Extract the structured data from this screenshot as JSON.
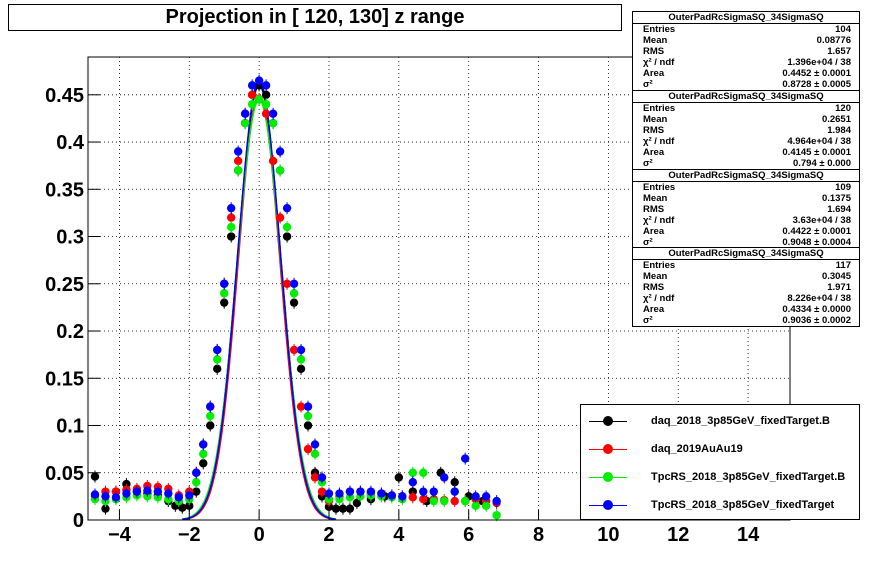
{
  "title": "Projection in [ 120, 130] z range",
  "stat_boxes": [
    {
      "name": "OuterPadRcSigmaSQ_34SigmaSQ",
      "rows": [
        [
          "Entries",
          "104"
        ],
        [
          "Mean",
          "0.08776"
        ],
        [
          "RMS",
          "1.657"
        ],
        [
          "χ² / ndf",
          "1.396e+04 / 38"
        ],
        [
          "Area",
          "0.4452 ± 0.0001"
        ],
        [
          "σ²",
          "0.8728 ± 0.0005"
        ]
      ]
    },
    {
      "name": "OuterPadRcSigmaSQ_34SigmaSQ",
      "rows": [
        [
          "Entries",
          "120"
        ],
        [
          "Mean",
          "0.2651"
        ],
        [
          "RMS",
          "1.984"
        ],
        [
          "χ² / ndf",
          "4.964e+04 / 38"
        ],
        [
          "Area",
          "0.4145 ± 0.0001"
        ],
        [
          "σ²",
          "0.794 ± 0.000"
        ]
      ]
    },
    {
      "name": "OuterPadRcSigmaSQ_34SigmaSQ",
      "rows": [
        [
          "Entries",
          "109"
        ],
        [
          "Mean",
          "0.1375"
        ],
        [
          "RMS",
          "1.694"
        ],
        [
          "χ² / ndf",
          "3.63e+04 / 38"
        ],
        [
          "Area",
          "0.4422 ± 0.0001"
        ],
        [
          "σ²",
          "0.9048 ± 0.0004"
        ]
      ]
    },
    {
      "name": "OuterPadRcSigmaSQ_34SigmaSQ",
      "rows": [
        [
          "Entries",
          "117"
        ],
        [
          "Mean",
          "0.3045"
        ],
        [
          "RMS",
          "1.971"
        ],
        [
          "χ² / ndf",
          "8.226e+04 / 38"
        ],
        [
          "Area",
          "0.4334 ± 0.0000"
        ],
        [
          "σ²",
          "0.9036 ± 0.0002"
        ]
      ]
    }
  ],
  "chart_data": {
    "type": "scatter",
    "title": "Projection in [ 120, 130] z range",
    "xlabel": "",
    "ylabel": "",
    "xlim": [
      -4.9,
      15.2
    ],
    "ylim": [
      0,
      0.49
    ],
    "grid": true,
    "legend_position": "bottom-right",
    "x_ticks": [
      -4,
      -2,
      0,
      2,
      4,
      6,
      8,
      10,
      12,
      14
    ],
    "x_tick_labels": [
      "−4",
      "−2",
      "0",
      "2",
      "4",
      "6",
      "8",
      "10",
      "12",
      "14"
    ],
    "y_ticks": [
      0,
      0.05,
      0.1,
      0.15,
      0.2,
      0.25,
      0.3,
      0.35,
      0.4,
      0.45
    ],
    "y_tick_labels": [
      "0",
      "0.05",
      "0.1",
      "0.15",
      "0.2",
      "0.25",
      "0.3",
      "0.35",
      "0.4",
      "0.45"
    ],
    "series": [
      {
        "name": "daq_2018_3p85GeV_fixedTarget.B",
        "color": "#000000",
        "x": [
          -4.7,
          -4.4,
          -4.1,
          -3.8,
          -3.5,
          -3.2,
          -2.9,
          -2.6,
          -2.4,
          -2.2,
          -2.0,
          -1.8,
          -1.6,
          -1.4,
          -1.2,
          -1.0,
          -0.8,
          -0.6,
          -0.4,
          -0.2,
          0.0,
          0.2,
          0.4,
          0.6,
          0.8,
          1.0,
          1.2,
          1.4,
          1.6,
          1.8,
          2.0,
          2.2,
          2.4,
          2.6,
          2.8,
          3.2,
          3.6,
          4.0,
          4.4,
          4.8,
          5.2,
          5.6,
          6.0,
          6.4
        ],
        "y": [
          0.046,
          0.012,
          0.03,
          0.038,
          0.03,
          0.028,
          0.026,
          0.02,
          0.015,
          0.013,
          0.015,
          0.03,
          0.06,
          0.1,
          0.16,
          0.23,
          0.3,
          0.37,
          0.42,
          0.45,
          0.46,
          0.45,
          0.42,
          0.37,
          0.3,
          0.23,
          0.16,
          0.1,
          0.05,
          0.025,
          0.014,
          0.012,
          0.012,
          0.012,
          0.018,
          0.022,
          0.025,
          0.045,
          0.03,
          0.02,
          0.05,
          0.04,
          0.025,
          0.02
        ]
      },
      {
        "name": "daq_2019AuAu19",
        "color": "#ff0000",
        "x": [
          -4.7,
          -4.4,
          -4.1,
          -3.8,
          -3.5,
          -3.2,
          -2.9,
          -2.6,
          -2.3,
          -2.0,
          -1.8,
          -1.6,
          -1.4,
          -1.2,
          -1.0,
          -0.8,
          -0.6,
          -0.4,
          -0.2,
          0.0,
          0.2,
          0.4,
          0.6,
          0.8,
          1.0,
          1.2,
          1.4,
          1.6,
          1.8,
          2.0,
          2.3,
          2.6,
          2.9,
          3.2,
          3.5,
          3.8,
          4.1,
          4.4,
          4.7,
          5.0,
          5.3,
          5.6,
          5.9,
          6.2,
          6.5,
          6.8
        ],
        "y": [
          0.025,
          0.03,
          0.03,
          0.032,
          0.033,
          0.036,
          0.035,
          0.033,
          0.026,
          0.03,
          0.05,
          0.08,
          0.12,
          0.18,
          0.25,
          0.32,
          0.38,
          0.43,
          0.45,
          0.445,
          0.43,
          0.38,
          0.32,
          0.25,
          0.18,
          0.12,
          0.075,
          0.045,
          0.03,
          0.02,
          0.025,
          0.03,
          0.03,
          0.028,
          0.028,
          0.026,
          0.025,
          0.024,
          0.022,
          0.022,
          0.021,
          0.02,
          0.02,
          0.022,
          0.02,
          0.018
        ]
      },
      {
        "name": "TpcRS_2018_3p85GeV_fixedTarget.B",
        "color": "#00ee00",
        "x": [
          -4.7,
          -4.4,
          -4.1,
          -3.8,
          -3.5,
          -3.2,
          -2.9,
          -2.6,
          -2.3,
          -2.0,
          -1.8,
          -1.6,
          -1.4,
          -1.2,
          -1.0,
          -0.8,
          -0.6,
          -0.4,
          -0.2,
          0.0,
          0.2,
          0.4,
          0.6,
          0.8,
          1.0,
          1.2,
          1.4,
          1.6,
          1.8,
          2.0,
          2.3,
          2.6,
          2.9,
          3.2,
          3.5,
          3.8,
          4.1,
          4.4,
          4.7,
          5.0,
          5.3,
          5.6,
          5.9,
          6.2,
          6.5,
          6.8
        ],
        "y": [
          0.022,
          0.02,
          0.022,
          0.024,
          0.026,
          0.025,
          0.024,
          0.022,
          0.02,
          0.022,
          0.04,
          0.07,
          0.11,
          0.17,
          0.24,
          0.31,
          0.37,
          0.42,
          0.44,
          0.445,
          0.44,
          0.42,
          0.37,
          0.31,
          0.24,
          0.17,
          0.11,
          0.07,
          0.04,
          0.022,
          0.022,
          0.024,
          0.025,
          0.026,
          0.025,
          0.024,
          0.022,
          0.05,
          0.05,
          0.02,
          0.02,
          0.03,
          0.02,
          0.015,
          0.015,
          0.005
        ]
      },
      {
        "name": "TpcRS_2018_3p85GeV_fixedTarget",
        "color": "#0000ff",
        "x": [
          -4.7,
          -4.4,
          -4.1,
          -3.8,
          -3.5,
          -3.2,
          -2.9,
          -2.6,
          -2.3,
          -2.0,
          -1.8,
          -1.6,
          -1.4,
          -1.2,
          -1.0,
          -0.8,
          -0.6,
          -0.4,
          -0.2,
          0.0,
          0.2,
          0.4,
          0.6,
          0.8,
          1.0,
          1.2,
          1.4,
          1.6,
          1.8,
          2.0,
          2.3,
          2.6,
          2.9,
          3.2,
          3.5,
          3.8,
          4.1,
          4.4,
          4.7,
          5.0,
          5.3,
          5.6,
          5.9,
          6.2,
          6.5,
          6.8
        ],
        "y": [
          0.027,
          0.025,
          0.024,
          0.028,
          0.03,
          0.031,
          0.03,
          0.028,
          0.024,
          0.026,
          0.05,
          0.08,
          0.12,
          0.18,
          0.25,
          0.33,
          0.39,
          0.43,
          0.46,
          0.465,
          0.46,
          0.43,
          0.39,
          0.33,
          0.25,
          0.18,
          0.12,
          0.08,
          0.045,
          0.028,
          0.028,
          0.03,
          0.03,
          0.03,
          0.028,
          0.026,
          0.025,
          0.04,
          0.03,
          0.03,
          0.045,
          0.03,
          0.065,
          0.025,
          0.025,
          0.02
        ]
      }
    ]
  }
}
